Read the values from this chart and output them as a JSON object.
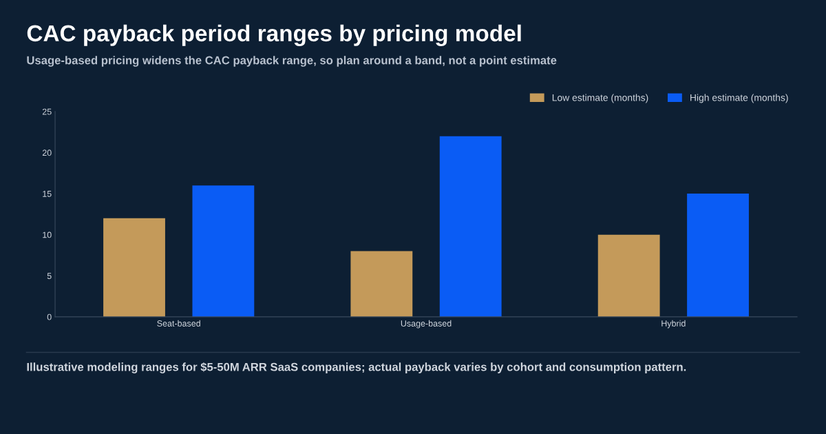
{
  "chart_data": {
    "type": "bar",
    "title": "CAC payback period ranges by pricing model",
    "subtitle": "Usage-based pricing widens the CAC payback range, so plan around a band, not a point estimate",
    "categories": [
      "Seat-based",
      "Usage-based",
      "Hybrid"
    ],
    "series": [
      {
        "name": "Low estimate (months)",
        "color": "#c49a5a",
        "values": [
          12,
          8,
          10
        ]
      },
      {
        "name": "High estimate (months)",
        "color": "#0a5cf5",
        "values": [
          16,
          22,
          15
        ]
      }
    ],
    "ylim": [
      0,
      25
    ],
    "yticks": [
      0,
      5,
      10,
      15,
      20,
      25
    ],
    "grid": false,
    "legend": "top right",
    "annotations": [
      "Illustrative modeling ranges for $5-50M ARR SaaS companies; actual payback varies by cohort and consumption pattern."
    ]
  }
}
